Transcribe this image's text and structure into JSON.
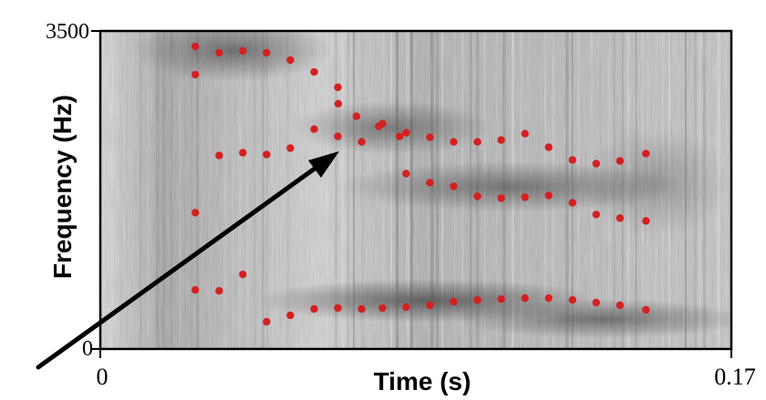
{
  "chart_data": {
    "type": "scatter",
    "title": "",
    "xlabel": "Time (s)",
    "ylabel": "Frequency (Hz)",
    "xlim": [
      0,
      0.17
    ],
    "ylim": [
      0,
      3500
    ],
    "x_ticks": [
      "0",
      "0.17"
    ],
    "y_ticks": [
      "0",
      "3500"
    ],
    "grid": false,
    "background": "grayscale spectrogram",
    "marker_color": "#d42020",
    "annotation": "arrow pointing to a formant transition",
    "series": [
      {
        "x": [
          0.0256,
          0.032,
          0.0384,
          0.0448,
          0.0512,
          0.0576,
          0.064,
          0.0641,
          0.069,
          0.075,
          0.0806
        ],
        "y": [
          3330,
          3260,
          3280,
          3260,
          3180,
          3050,
          2880,
          2700,
          2560,
          2450,
          2340
        ]
      },
      {
        "x": [
          0.0256,
          0.032,
          0.0384,
          0.0448,
          0.0512,
          0.0576,
          0.064,
          0.0704,
          0.076,
          0.0824,
          0.0888,
          0.0952,
          0.1016,
          0.108,
          0.1144,
          0.1208,
          0.1272,
          0.1336,
          0.14,
          0.147
        ],
        "y": [
          3020,
          2130,
          2160,
          2140,
          2210,
          2420,
          2340,
          2280,
          2480,
          2380,
          2330,
          2280,
          2280,
          2300,
          2370,
          2220,
          2080,
          2040,
          2070,
          2150
        ]
      },
      {
        "x": [
          0.0256,
          0.0824,
          0.0888,
          0.0952,
          0.1016,
          0.108,
          0.1144,
          0.1208,
          0.1272,
          0.1336,
          0.14,
          0.147
        ],
        "y": [
          1500,
          1930,
          1830,
          1790,
          1680,
          1660,
          1670,
          1690,
          1610,
          1480,
          1440,
          1410
        ]
      },
      {
        "x": [
          0.0256,
          0.032,
          0.0384,
          0.0448,
          0.0512,
          0.0576,
          0.064,
          0.0704,
          0.076,
          0.0824,
          0.0888,
          0.0952,
          0.1016,
          0.108,
          0.1144,
          0.1208,
          0.1272,
          0.1336,
          0.14,
          0.147
        ],
        "y": [
          650,
          640,
          820,
          300,
          370,
          440,
          450,
          440,
          450,
          460,
          480,
          520,
          540,
          550,
          560,
          560,
          540,
          510,
          480,
          430
        ]
      }
    ]
  }
}
